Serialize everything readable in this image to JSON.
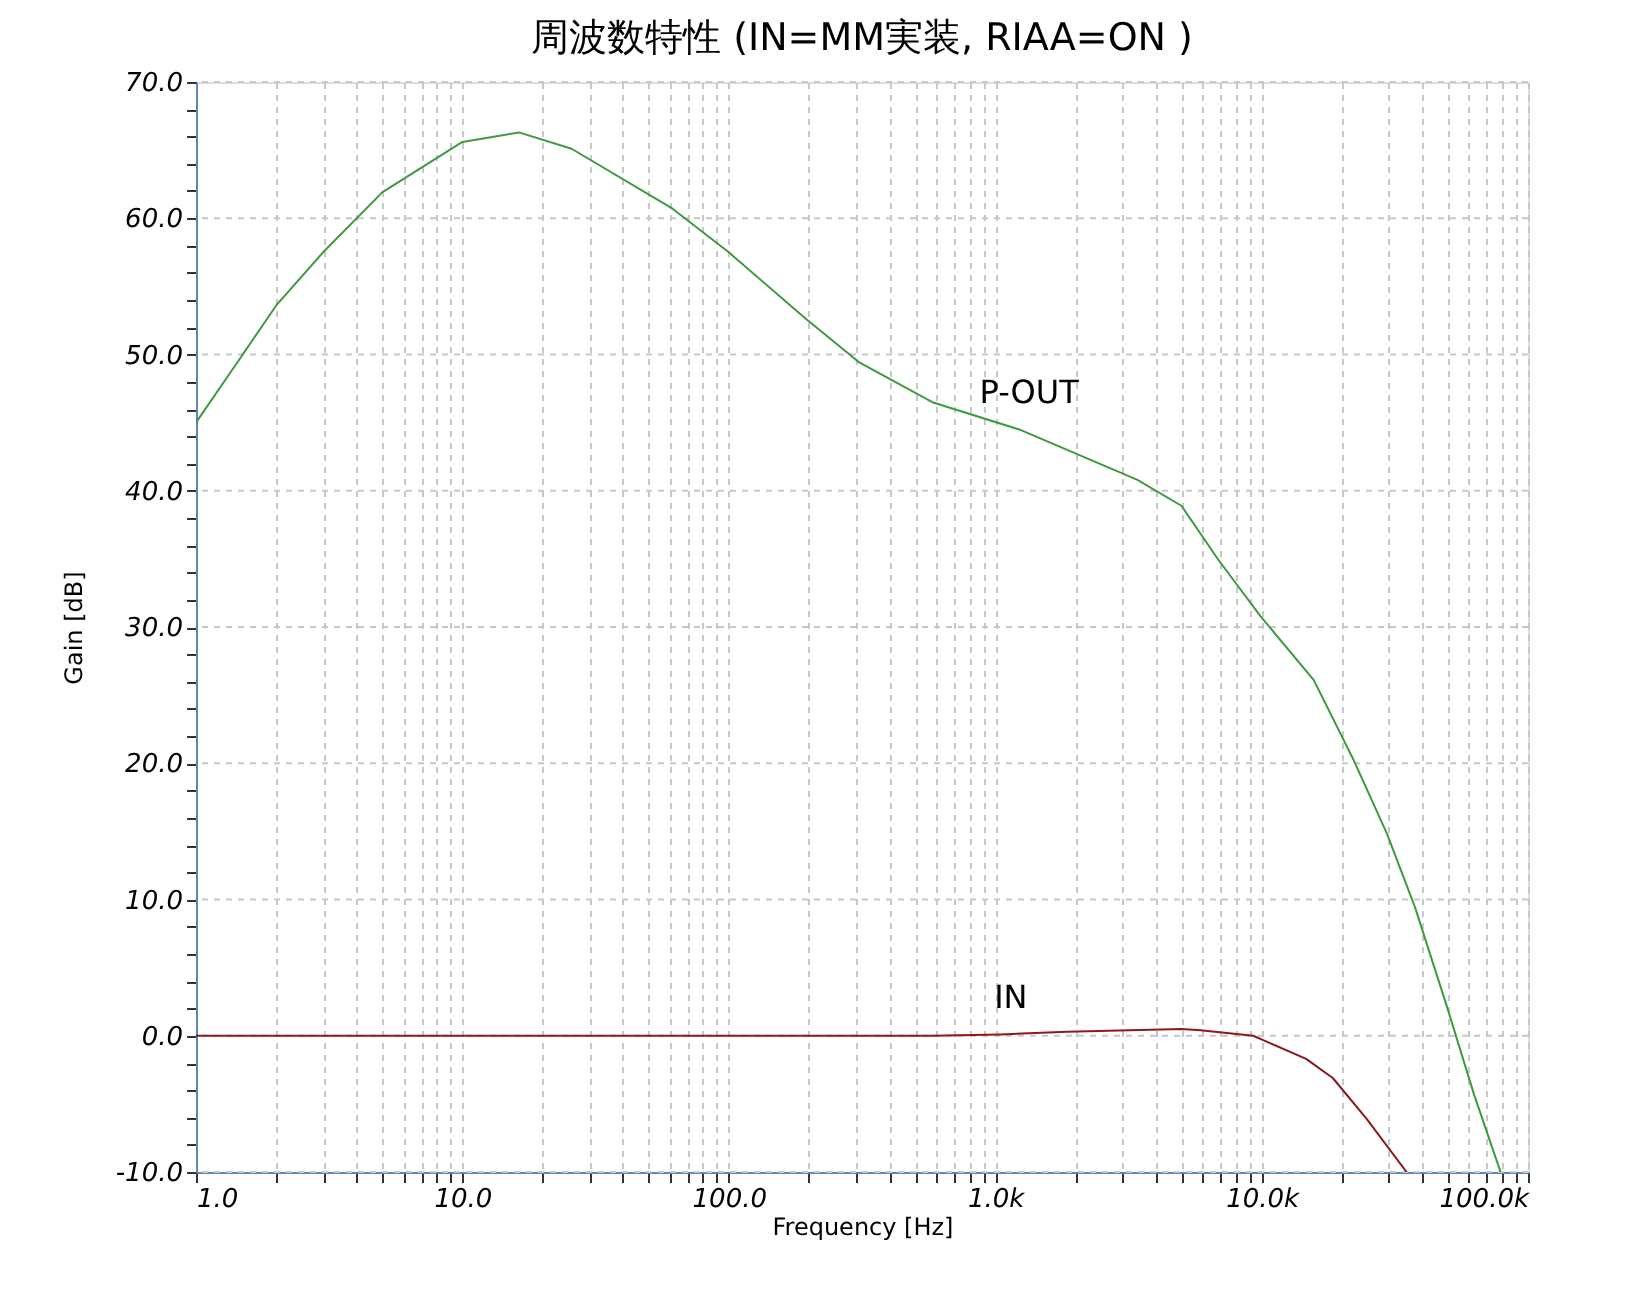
{
  "chart_data": {
    "type": "line",
    "title": "周波数特性 (IN=MM実装, RIAA=ON )",
    "xlabel": "Frequency [Hz]",
    "ylabel": "Gain [dB]",
    "log": "x",
    "grid": true,
    "legend": false,
    "line_style": "solid",
    "marker": "none",
    "xlim": [
      1,
      100000
    ],
    "ylim": [
      -10,
      70
    ],
    "xticks": [
      {
        "value": 1,
        "label": "1.0"
      },
      {
        "value": 2,
        "label": null
      },
      {
        "value": 3,
        "label": null
      },
      {
        "value": 4,
        "label": null
      },
      {
        "value": 5,
        "label": null
      },
      {
        "value": 6,
        "label": null
      },
      {
        "value": 7,
        "label": null
      },
      {
        "value": 8,
        "label": null
      },
      {
        "value": 9,
        "label": null
      },
      {
        "value": 10,
        "label": "10.0"
      },
      {
        "value": 20,
        "label": null
      },
      {
        "value": 30,
        "label": null
      },
      {
        "value": 40,
        "label": null
      },
      {
        "value": 50,
        "label": null
      },
      {
        "value": 60,
        "label": null
      },
      {
        "value": 70,
        "label": null
      },
      {
        "value": 80,
        "label": null
      },
      {
        "value": 90,
        "label": null
      },
      {
        "value": 100,
        "label": "100.0"
      },
      {
        "value": 200,
        "label": null
      },
      {
        "value": 300,
        "label": null
      },
      {
        "value": 400,
        "label": null
      },
      {
        "value": 500,
        "label": null
      },
      {
        "value": 600,
        "label": null
      },
      {
        "value": 700,
        "label": null
      },
      {
        "value": 800,
        "label": null
      },
      {
        "value": 900,
        "label": null
      },
      {
        "value": 1000,
        "label": "1.0k"
      },
      {
        "value": 2000,
        "label": null
      },
      {
        "value": 3000,
        "label": null
      },
      {
        "value": 4000,
        "label": null
      },
      {
        "value": 5000,
        "label": null
      },
      {
        "value": 6000,
        "label": null
      },
      {
        "value": 7000,
        "label": null
      },
      {
        "value": 8000,
        "label": null
      },
      {
        "value": 9000,
        "label": null
      },
      {
        "value": 10000,
        "label": "10.0k"
      },
      {
        "value": 20000,
        "label": null
      },
      {
        "value": 30000,
        "label": null
      },
      {
        "value": 40000,
        "label": null
      },
      {
        "value": 50000,
        "label": null
      },
      {
        "value": 60000,
        "label": null
      },
      {
        "value": 70000,
        "label": null
      },
      {
        "value": 80000,
        "label": null
      },
      {
        "value": 90000,
        "label": null
      },
      {
        "value": 100000,
        "label": "100.0k"
      }
    ],
    "yticks": [
      {
        "value": -10,
        "label": "-10.0"
      },
      {
        "value": -8,
        "label": null
      },
      {
        "value": -6,
        "label": null
      },
      {
        "value": -4,
        "label": null
      },
      {
        "value": -2,
        "label": null
      },
      {
        "value": 0,
        "label": "0.0"
      },
      {
        "value": 2,
        "label": null
      },
      {
        "value": 4,
        "label": null
      },
      {
        "value": 6,
        "label": null
      },
      {
        "value": 8,
        "label": null
      },
      {
        "value": 10,
        "label": "10.0"
      },
      {
        "value": 12,
        "label": null
      },
      {
        "value": 14,
        "label": null
      },
      {
        "value": 16,
        "label": null
      },
      {
        "value": 18,
        "label": null
      },
      {
        "value": 20,
        "label": "20.0"
      },
      {
        "value": 22,
        "label": null
      },
      {
        "value": 24,
        "label": null
      },
      {
        "value": 26,
        "label": null
      },
      {
        "value": 28,
        "label": null
      },
      {
        "value": 30,
        "label": "30.0"
      },
      {
        "value": 32,
        "label": null
      },
      {
        "value": 34,
        "label": null
      },
      {
        "value": 36,
        "label": null
      },
      {
        "value": 38,
        "label": null
      },
      {
        "value": 40,
        "label": "40.0"
      },
      {
        "value": 42,
        "label": null
      },
      {
        "value": 44,
        "label": null
      },
      {
        "value": 46,
        "label": null
      },
      {
        "value": 48,
        "label": null
      },
      {
        "value": 50,
        "label": "50.0"
      },
      {
        "value": 52,
        "label": null
      },
      {
        "value": 54,
        "label": null
      },
      {
        "value": 56,
        "label": null
      },
      {
        "value": 58,
        "label": null
      },
      {
        "value": 60,
        "label": "60.0"
      },
      {
        "value": 62,
        "label": null
      },
      {
        "value": 64,
        "label": null
      },
      {
        "value": 66,
        "label": null
      },
      {
        "value": 68,
        "label": null
      },
      {
        "value": 70,
        "label": "70.0"
      }
    ],
    "series": [
      {
        "name": "P-OUT",
        "color": "#3f9a3f",
        "x": [
          1,
          1.45,
          2,
          3,
          5,
          10,
          16.3,
          25.7,
          61.5,
          100,
          195,
          310,
          581,
          1230,
          1970,
          3420,
          5000,
          6900,
          9900,
          15700,
          22200,
          29600,
          37700,
          49700,
          62700,
          78900
        ],
        "values": [
          45.0,
          49.6,
          53.6,
          57.5,
          61.9,
          65.6,
          66.3,
          65.1,
          60.7,
          57.5,
          52.6,
          49.4,
          46.5,
          44.5,
          42.8,
          40.8,
          38.9,
          34.9,
          30.8,
          26.1,
          20.2,
          14.8,
          9.4,
          2.1,
          -4.3,
          -10.0
        ]
      },
      {
        "name": "IN",
        "color": "#8b1a1a",
        "x": [
          1,
          10,
          100,
          581,
          1050,
          1860,
          5000,
          5900,
          9300,
          14700,
          18500,
          24800,
          35000
        ],
        "values": [
          0.0,
          0.0,
          0.0,
          0.0,
          0.1,
          0.3,
          0.5,
          0.4,
          0.0,
          -1.7,
          -3.1,
          -6.1,
          -10.0
        ]
      }
    ]
  }
}
